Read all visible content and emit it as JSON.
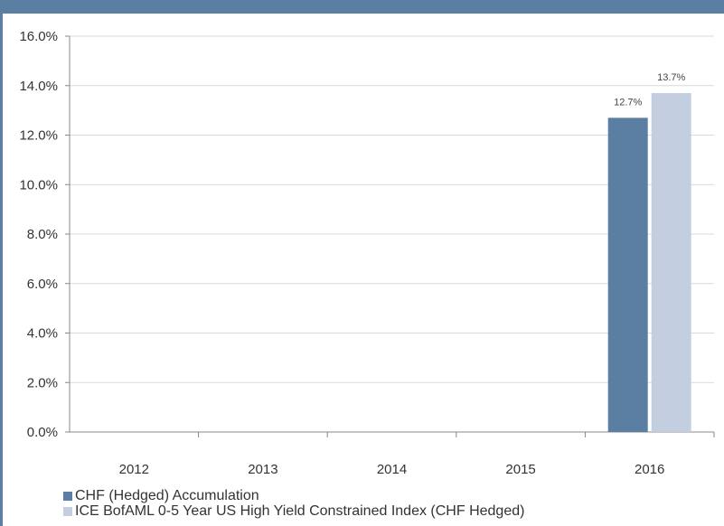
{
  "chart_data": {
    "type": "bar",
    "categories": [
      "2012",
      "2013",
      "2014",
      "2015",
      "2016"
    ],
    "series": [
      {
        "name": "CHF (Hedged) Accumulation",
        "color": "#5b7fa3",
        "values": [
          null,
          null,
          null,
          null,
          12.7
        ],
        "labels": [
          "",
          "",
          "",
          "",
          "12.7%"
        ]
      },
      {
        "name": "ICE BofAML 0-5 Year US High Yield Constrained Index (CHF Hedged)",
        "color": "#c3cfe0",
        "values": [
          null,
          null,
          null,
          null,
          13.7
        ],
        "labels": [
          "",
          "",
          "",
          "",
          "13.7%"
        ]
      }
    ],
    "y_ticks": [
      "0.0%",
      "2.0%",
      "4.0%",
      "6.0%",
      "8.0%",
      "10.0%",
      "12.0%",
      "14.0%",
      "16.0%"
    ],
    "ylim": [
      0,
      16
    ],
    "y_tick_step": 2,
    "grid": true,
    "legend_position": "bottom-left",
    "title": "",
    "xlabel": "",
    "ylabel": ""
  }
}
